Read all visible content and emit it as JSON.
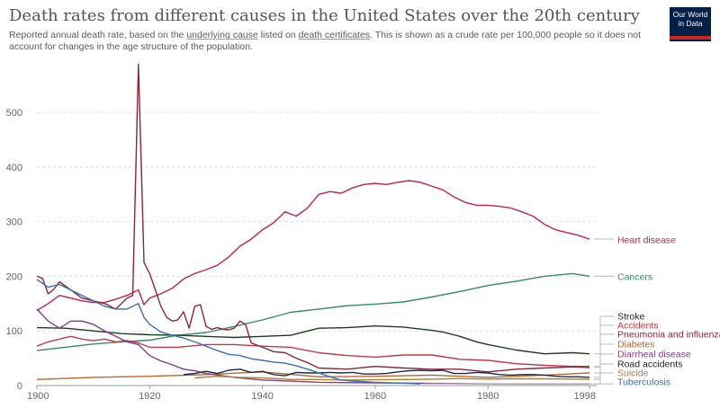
{
  "header": {
    "title": "Death rates from different causes in the United States over the 20th century",
    "subtitle_parts": [
      "Reported annual death rate, based on the ",
      "underlying cause",
      " listed on ",
      "death certificates",
      ". This is shown as a crude rate per 100,000 people so it does not account for changes in the age structure of the population."
    ],
    "logo_line1": "Our World",
    "logo_line2": "in Data"
  },
  "colors": {
    "logo_bg": "#002147",
    "logo_accent": "#ce261e"
  },
  "chart_data": {
    "type": "line",
    "title": "Death rates from different causes in the United States over the 20th century",
    "xlabel": "",
    "ylabel": "",
    "xlim": [
      1900,
      1998
    ],
    "ylim": [
      0,
      590
    ],
    "yticks": [
      0,
      100,
      200,
      300,
      400,
      500
    ],
    "xticks": [
      1900,
      1920,
      1940,
      1960,
      1980,
      1998
    ],
    "grid": "horizontal dashed",
    "legend": "right (labels at line ends)",
    "series": [
      {
        "name": "Heart disease",
        "color": "#c1234f",
        "points": [
          [
            1900,
            137
          ],
          [
            1902,
            150
          ],
          [
            1904,
            165
          ],
          [
            1906,
            160
          ],
          [
            1908,
            155
          ],
          [
            1910,
            152
          ],
          [
            1912,
            152
          ],
          [
            1914,
            158
          ],
          [
            1916,
            165
          ],
          [
            1918,
            175
          ],
          [
            1919,
            148
          ],
          [
            1920,
            160
          ],
          [
            1922,
            168
          ],
          [
            1924,
            178
          ],
          [
            1926,
            195
          ],
          [
            1928,
            205
          ],
          [
            1930,
            212
          ],
          [
            1932,
            220
          ],
          [
            1934,
            235
          ],
          [
            1936,
            255
          ],
          [
            1938,
            268
          ],
          [
            1940,
            285
          ],
          [
            1942,
            298
          ],
          [
            1944,
            318
          ],
          [
            1946,
            310
          ],
          [
            1948,
            325
          ],
          [
            1950,
            350
          ],
          [
            1952,
            355
          ],
          [
            1954,
            352
          ],
          [
            1956,
            362
          ],
          [
            1958,
            368
          ],
          [
            1960,
            370
          ],
          [
            1962,
            368
          ],
          [
            1964,
            372
          ],
          [
            1966,
            375
          ],
          [
            1968,
            372
          ],
          [
            1970,
            365
          ],
          [
            1972,
            358
          ],
          [
            1974,
            345
          ],
          [
            1976,
            335
          ],
          [
            1978,
            330
          ],
          [
            1980,
            330
          ],
          [
            1982,
            328
          ],
          [
            1984,
            325
          ],
          [
            1986,
            318
          ],
          [
            1988,
            310
          ],
          [
            1990,
            295
          ],
          [
            1992,
            285
          ],
          [
            1994,
            280
          ],
          [
            1996,
            275
          ],
          [
            1998,
            268
          ]
        ]
      },
      {
        "name": "Cancers",
        "color": "#3a8a64",
        "points": [
          [
            1900,
            64
          ],
          [
            1905,
            70
          ],
          [
            1910,
            76
          ],
          [
            1915,
            80
          ],
          [
            1920,
            83
          ],
          [
            1925,
            92
          ],
          [
            1930,
            97
          ],
          [
            1935,
            108
          ],
          [
            1940,
            120
          ],
          [
            1945,
            134
          ],
          [
            1950,
            140
          ],
          [
            1955,
            146
          ],
          [
            1960,
            149
          ],
          [
            1965,
            153
          ],
          [
            1970,
            162
          ],
          [
            1975,
            172
          ],
          [
            1980,
            183
          ],
          [
            1985,
            191
          ],
          [
            1990,
            200
          ],
          [
            1995,
            205
          ],
          [
            1998,
            200
          ]
        ]
      },
      {
        "name": "Stroke",
        "color": "#1d3d1d",
        "points": [
          [
            1900,
            106
          ],
          [
            1905,
            105
          ],
          [
            1910,
            100
          ],
          [
            1915,
            95
          ],
          [
            1920,
            93
          ],
          [
            1925,
            92
          ],
          [
            1930,
            90
          ],
          [
            1935,
            88
          ],
          [
            1940,
            90
          ],
          [
            1945,
            92
          ],
          [
            1950,
            105
          ],
          [
            1955,
            106
          ],
          [
            1960,
            109
          ],
          [
            1965,
            107
          ],
          [
            1970,
            101
          ],
          [
            1972,
            98
          ],
          [
            1975,
            90
          ],
          [
            1978,
            80
          ],
          [
            1980,
            75
          ],
          [
            1985,
            65
          ],
          [
            1990,
            58
          ],
          [
            1995,
            60
          ],
          [
            1998,
            58
          ]
        ]
      },
      {
        "name": "Accidents",
        "color": "#c0394a",
        "points": [
          [
            1900,
            72
          ],
          [
            1902,
            80
          ],
          [
            1904,
            85
          ],
          [
            1906,
            90
          ],
          [
            1908,
            85
          ],
          [
            1910,
            82
          ],
          [
            1912,
            85
          ],
          [
            1914,
            80
          ],
          [
            1916,
            82
          ],
          [
            1918,
            78
          ],
          [
            1920,
            70
          ],
          [
            1925,
            70
          ],
          [
            1930,
            75
          ],
          [
            1935,
            75
          ],
          [
            1940,
            72
          ],
          [
            1945,
            70
          ],
          [
            1950,
            60
          ],
          [
            1955,
            55
          ],
          [
            1960,
            52
          ],
          [
            1965,
            56
          ],
          [
            1970,
            56
          ],
          [
            1975,
            48
          ],
          [
            1980,
            46
          ],
          [
            1985,
            40
          ],
          [
            1990,
            37
          ],
          [
            1995,
            35
          ],
          [
            1998,
            35
          ]
        ]
      },
      {
        "name": "Pneumonia and influenza",
        "color": "#8a2737",
        "points": [
          [
            1900,
            200
          ],
          [
            1901,
            196
          ],
          [
            1902,
            168
          ],
          [
            1903,
            176
          ],
          [
            1904,
            190
          ],
          [
            1906,
            175
          ],
          [
            1908,
            160
          ],
          [
            1910,
            155
          ],
          [
            1912,
            150
          ],
          [
            1914,
            140
          ],
          [
            1916,
            160
          ],
          [
            1917,
            165
          ],
          [
            1918,
            588
          ],
          [
            1919,
            225
          ],
          [
            1920,
            205
          ],
          [
            1921,
            175
          ],
          [
            1922,
            145
          ],
          [
            1923,
            125
          ],
          [
            1924,
            118
          ],
          [
            1925,
            120
          ],
          [
            1926,
            135
          ],
          [
            1927,
            105
          ],
          [
            1928,
            145
          ],
          [
            1929,
            148
          ],
          [
            1930,
            108
          ],
          [
            1931,
            103
          ],
          [
            1932,
            106
          ],
          [
            1933,
            103
          ],
          [
            1934,
            102
          ],
          [
            1935,
            105
          ],
          [
            1936,
            118
          ],
          [
            1937,
            112
          ],
          [
            1938,
            78
          ],
          [
            1940,
            70
          ],
          [
            1942,
            62
          ],
          [
            1944,
            60
          ],
          [
            1946,
            50
          ],
          [
            1948,
            42
          ],
          [
            1950,
            32
          ],
          [
            1955,
            30
          ],
          [
            1960,
            35
          ],
          [
            1965,
            32
          ],
          [
            1970,
            30
          ],
          [
            1975,
            30
          ],
          [
            1980,
            25
          ],
          [
            1985,
            30
          ],
          [
            1990,
            32
          ],
          [
            1995,
            34
          ],
          [
            1998,
            33
          ]
        ]
      },
      {
        "name": "Diabetes",
        "color": "#b8672e",
        "points": [
          [
            1900,
            11
          ],
          [
            1910,
            15
          ],
          [
            1920,
            17
          ],
          [
            1930,
            20
          ],
          [
            1940,
            25
          ],
          [
            1950,
            16
          ],
          [
            1960,
            17
          ],
          [
            1970,
            19
          ],
          [
            1980,
            15
          ],
          [
            1990,
            19
          ],
          [
            1998,
            23
          ]
        ]
      },
      {
        "name": "Diarrheal disease",
        "color": "#7d3f8f",
        "points": [
          [
            1900,
            140
          ],
          [
            1902,
            118
          ],
          [
            1904,
            105
          ],
          [
            1906,
            118
          ],
          [
            1908,
            118
          ],
          [
            1910,
            112
          ],
          [
            1912,
            100
          ],
          [
            1914,
            90
          ],
          [
            1916,
            80
          ],
          [
            1918,
            75
          ],
          [
            1920,
            55
          ],
          [
            1922,
            45
          ],
          [
            1924,
            38
          ],
          [
            1926,
            30
          ],
          [
            1928,
            27
          ],
          [
            1930,
            22
          ],
          [
            1935,
            15
          ],
          [
            1940,
            10
          ],
          [
            1945,
            8
          ],
          [
            1950,
            6
          ],
          [
            1960,
            5
          ],
          [
            1970,
            4
          ],
          [
            1980,
            3
          ],
          [
            1990,
            3
          ],
          [
            1998,
            3
          ]
        ]
      },
      {
        "name": "Road accidents",
        "color": "#1a2a4a",
        "points": [
          [
            1926,
            20
          ],
          [
            1928,
            22
          ],
          [
            1930,
            26
          ],
          [
            1932,
            22
          ],
          [
            1934,
            28
          ],
          [
            1936,
            30
          ],
          [
            1938,
            24
          ],
          [
            1940,
            26
          ],
          [
            1942,
            20
          ],
          [
            1944,
            18
          ],
          [
            1946,
            24
          ],
          [
            1948,
            23
          ],
          [
            1950,
            23
          ],
          [
            1952,
            24
          ],
          [
            1954,
            23
          ],
          [
            1956,
            24
          ],
          [
            1958,
            21
          ],
          [
            1960,
            21
          ],
          [
            1962,
            22
          ],
          [
            1964,
            25
          ],
          [
            1966,
            27
          ],
          [
            1968,
            28
          ],
          [
            1970,
            27
          ],
          [
            1972,
            28
          ],
          [
            1974,
            22
          ],
          [
            1976,
            22
          ],
          [
            1978,
            24
          ],
          [
            1980,
            23
          ],
          [
            1982,
            20
          ],
          [
            1984,
            19
          ],
          [
            1986,
            20
          ],
          [
            1988,
            20
          ],
          [
            1990,
            19
          ],
          [
            1992,
            17
          ],
          [
            1994,
            16
          ],
          [
            1996,
            16
          ],
          [
            1998,
            15
          ]
        ]
      },
      {
        "name": "Suicide",
        "color": "#b07d2f",
        "points": [
          [
            1928,
            14
          ],
          [
            1932,
            17
          ],
          [
            1936,
            15
          ],
          [
            1940,
            14
          ],
          [
            1945,
            11
          ],
          [
            1950,
            11
          ],
          [
            1955,
            10
          ],
          [
            1960,
            10.6
          ],
          [
            1965,
            11
          ],
          [
            1970,
            11.6
          ],
          [
            1975,
            12.6
          ],
          [
            1980,
            11.9
          ],
          [
            1985,
            12.3
          ],
          [
            1990,
            12.4
          ],
          [
            1995,
            11.9
          ],
          [
            1998,
            11.3
          ]
        ]
      },
      {
        "name": "Tuberculosis",
        "color": "#3a6fb3",
        "points": [
          [
            1900,
            194
          ],
          [
            1902,
            180
          ],
          [
            1904,
            185
          ],
          [
            1906,
            175
          ],
          [
            1908,
            165
          ],
          [
            1910,
            155
          ],
          [
            1912,
            145
          ],
          [
            1914,
            140
          ],
          [
            1916,
            140
          ],
          [
            1918,
            150
          ],
          [
            1919,
            125
          ],
          [
            1920,
            112
          ],
          [
            1922,
            98
          ],
          [
            1924,
            92
          ],
          [
            1926,
            87
          ],
          [
            1928,
            80
          ],
          [
            1930,
            72
          ],
          [
            1932,
            64
          ],
          [
            1934,
            57
          ],
          [
            1936,
            55
          ],
          [
            1938,
            49
          ],
          [
            1940,
            46
          ],
          [
            1942,
            43
          ],
          [
            1944,
            41
          ],
          [
            1946,
            36
          ],
          [
            1948,
            30
          ],
          [
            1950,
            23
          ],
          [
            1952,
            16
          ],
          [
            1954,
            10
          ],
          [
            1956,
            8
          ],
          [
            1958,
            7
          ],
          [
            1960,
            6
          ],
          [
            1962,
            5
          ],
          [
            1964,
            4.5
          ],
          [
            1966,
            4
          ],
          [
            1968,
            3
          ]
        ]
      }
    ]
  }
}
